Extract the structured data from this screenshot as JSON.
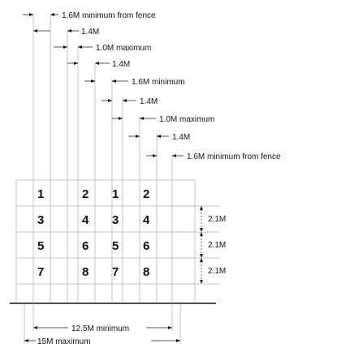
{
  "dimensions": {
    "d1": "1.6M minimum from fence",
    "d2": "1.4M",
    "d3": "1.0M maximum",
    "d4": "1.4M",
    "d5": "1.6M minimum",
    "d6": "1.4M",
    "d7": "1.0M maximum",
    "d8": "1.4M",
    "d9": "1.6M minimum from fence"
  },
  "row_spacing": [
    "2.1M",
    "2.1M",
    "2.1M"
  ],
  "plot_numbers": [
    [
      "1",
      "2",
      "1",
      "2"
    ],
    [
      "3",
      "4",
      "3",
      "4"
    ],
    [
      "5",
      "6",
      "5",
      "6"
    ],
    [
      "7",
      "8",
      "7",
      "8"
    ]
  ],
  "bottom": {
    "min_width": "12.5M minimum",
    "max_width": "15M maximum"
  }
}
